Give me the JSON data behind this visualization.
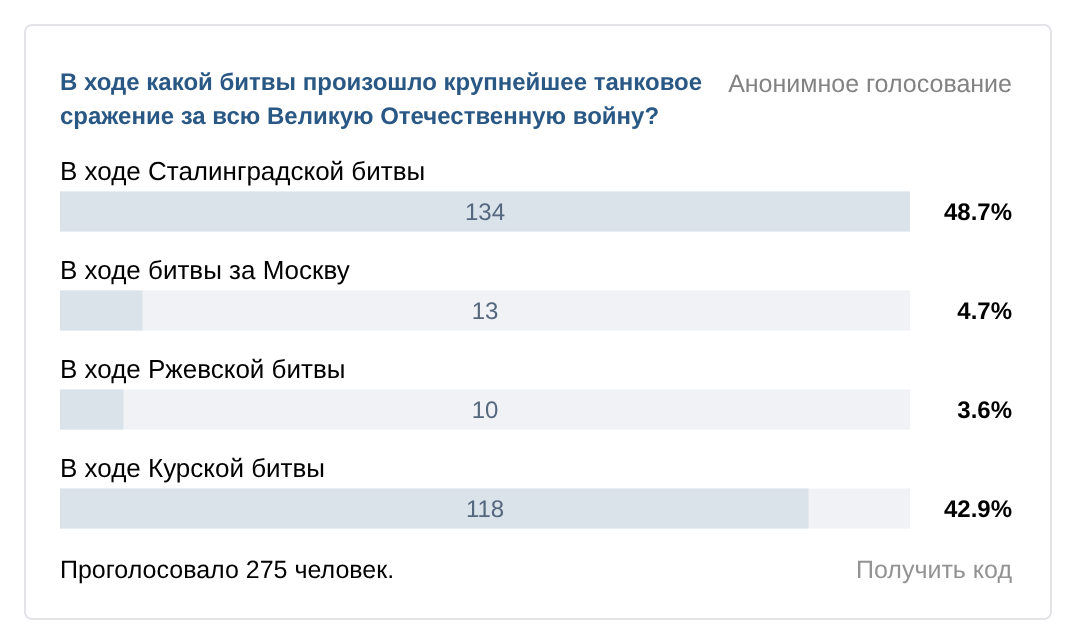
{
  "chart_data": {
    "type": "bar",
    "orientation": "horizontal",
    "title": "В ходе какой битвы произошло крупнейшее танковое сражение за всю Великую Отечественную войну?",
    "subtitle": "Анонимное голосование",
    "categories": [
      "В ходе Сталинградской битвы",
      "В ходе битвы за Москву",
      "В ходе Ржевской битвы",
      "В ходе Курской битвы"
    ],
    "values": [
      134,
      13,
      10,
      118
    ],
    "color": "#dae2ea",
    "xlim": [
      0,
      134
    ],
    "data_labels": true,
    "tick_labels": "y",
    "grid": false,
    "annotations": [
      "48.7%",
      "4.7%",
      "3.6%",
      "42.9%",
      "Проголосовало 275 человек.",
      "Получить код"
    ]
  }
}
